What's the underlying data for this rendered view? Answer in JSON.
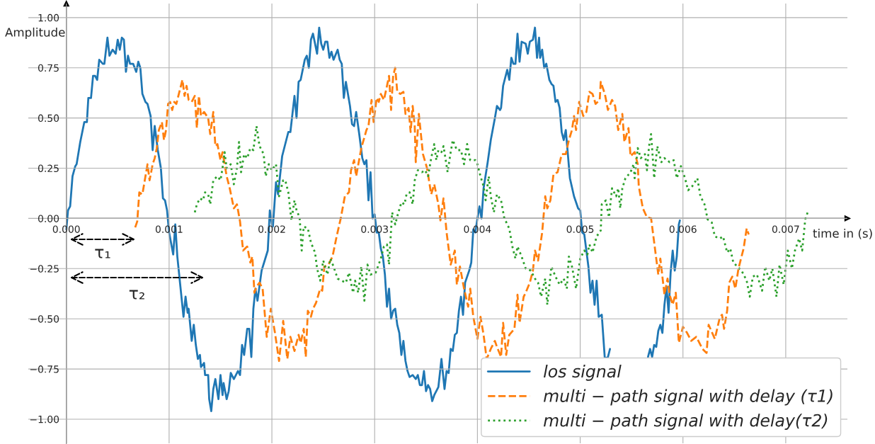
{
  "chart_data": {
    "type": "line",
    "xlabel": "time in (s)",
    "ylabel": "Amplitude",
    "xlim": [
      -0.00037,
      0.0076
    ],
    "ylim": [
      -1.12,
      1.07
    ],
    "xticks": [
      {
        "value": 0,
        "label": "0.000"
      },
      {
        "value": 0.001,
        "label": "0.001"
      },
      {
        "value": 0.002,
        "label": "0.002"
      },
      {
        "value": 0.003,
        "label": "0.003"
      },
      {
        "value": 0.004,
        "label": "0.004"
      },
      {
        "value": 0.005,
        "label": "0.005"
      },
      {
        "value": 0.006,
        "label": "0.006"
      },
      {
        "value": 0.007,
        "label": "0.007"
      }
    ],
    "yticks": [
      {
        "value": -1,
        "label": "−1.00"
      },
      {
        "value": -0.75,
        "label": "−0.75"
      },
      {
        "value": -0.5,
        "label": "−0.50"
      },
      {
        "value": -0.25,
        "label": "−0.25"
      },
      {
        "value": 0,
        "label": "0.00"
      },
      {
        "value": 0.25,
        "label": "0.25"
      },
      {
        "value": 0.5,
        "label": "0.50"
      },
      {
        "value": 0.75,
        "label": "0.75"
      },
      {
        "value": 1,
        "label": "1.00"
      }
    ],
    "grid": true,
    "legend": "lower right",
    "annotations": [
      "τ₁",
      "τ₂"
    ],
    "series": [
      {
        "name": "los signal",
        "color": "#1f77b4",
        "line_style": "solid",
        "x": [
          0,
          1.6e-05,
          3.7e-05,
          6e-05,
          8.7e-05,
          0.0001,
          0.000135,
          0.000175,
          0.0002,
          0.000214,
          0.00024,
          0.00026,
          0.00028,
          0.0003,
          0.00032,
          0.000355,
          0.00037,
          0.0004,
          0.00042,
          0.00045,
          0.00048,
          0.0005,
          0.00052,
          0.00054,
          0.00056,
          0.00058,
          0.0006,
          0.00062,
          0.00065,
          0.00068,
          0.0007,
          0.00072,
          0.00074,
          0.00077,
          0.00079,
          0.00082,
          0.00084,
          0.00086,
          0.00089,
          0.00092,
          0.00094,
          0.00096,
          0.00098,
          0.001,
          0.00104,
          0.00106,
          0.00108,
          0.00111,
          0.00114,
          0.00116,
          0.00118,
          0.00119,
          0.00122,
          0.00124,
          0.00126,
          0.00128,
          0.0013,
          0.00131,
          0.00134,
          0.00135,
          0.00138,
          0.00139,
          0.00141,
          0.00143,
          0.00145,
          0.00148,
          0.0015,
          0.00152,
          0.00153,
          0.00156,
          0.00158,
          0.0016,
          0.00163,
          0.00167,
          0.00169,
          0.00171,
          0.00173,
          0.00176,
          0.00178,
          0.0018,
          0.00182,
          0.00184,
          0.00186,
          0.0019,
          0.00196,
          0.00198,
          0.002,
          0.00201,
          0.00204,
          0.00206,
          0.0021,
          0.00216,
          0.00218,
          0.00222,
          0.00224,
          0.00226,
          0.00228,
          0.00232,
          0.00234,
          0.00236,
          0.00238,
          0.0024,
          0.00244,
          0.00246,
          0.00248,
          0.0025,
          0.00252,
          0.00254,
          0.00256,
          0.00258,
          0.0026,
          0.00264,
          0.00266,
          0.00268,
          0.0027,
          0.00272,
          0.00276,
          0.00278,
          0.0028,
          0.00282,
          0.00285,
          0.00288,
          0.0029,
          0.00292,
          0.00294,
          0.00296,
          0.00298,
          0.003,
          0.00302,
          0.00304,
          0.00306,
          0.00308,
          0.0031,
          0.00312,
          0.00314,
          0.00316,
          0.00318,
          0.0032,
          0.00322,
          0.00324,
          0.00326,
          0.00328,
          0.0033,
          0.00332,
          0.00334,
          0.00337,
          0.0034,
          0.00342,
          0.00344,
          0.00346,
          0.00348,
          0.0035,
          0.00352,
          0.00354,
          0.00356,
          0.00358,
          0.00362,
          0.00365,
          0.00368,
          0.0037,
          0.00372,
          0.00374,
          0.00376,
          0.00378,
          0.0038,
          0.00382,
          0.00384,
          0.00386,
          0.00388,
          0.00392,
          0.00394,
          0.00396,
          0.00398,
          0.004,
          0.00402,
          0.00404,
          0.00406,
          0.0041,
          0.00413,
          0.00417,
          0.00419,
          0.00422,
          0.00423,
          0.00425,
          0.00429,
          0.00431,
          0.00433,
          0.00435,
          0.00437,
          0.00439,
          0.00441,
          0.00443,
          0.00447,
          0.00449,
          0.00451,
          0.00454,
          0.00456,
          0.00458,
          0.0046,
          0.00461,
          0.00463,
          0.00465,
          0.00467,
          0.0047,
          0.00472,
          0.00474,
          0.00476,
          0.00478,
          0.0048,
          0.00482,
          0.00484,
          0.00486,
          0.00488,
          0.0049,
          0.00494,
          0.00498,
          0.005,
          0.00502,
          0.00504,
          0.00506,
          0.00508,
          0.0051,
          0.00512,
          0.00514,
          0.00516,
          0.00518,
          0.00521,
          0.00524,
          0.00527,
          0.00529,
          0.00532,
          0.00537,
          0.0054,
          0.00544,
          0.00549,
          0.00553,
          0.00556,
          0.0056,
          0.00563,
          0.00566,
          0.00568,
          0.0057,
          0.00572,
          0.00574,
          0.00576,
          0.00578,
          0.0058,
          0.00582,
          0.00584,
          0.00586,
          0.00588,
          0.0059,
          0.00592,
          0.00594,
          0.00596,
          0.00597
        ],
        "values": [
          -0.055,
          0.04,
          0.06,
          0.21,
          0.26,
          0.27,
          0.38,
          0.48,
          0.48,
          0.6,
          0.6,
          0.71,
          0.71,
          0.69,
          0.79,
          0.77,
          0.77,
          0.9,
          0.81,
          0.84,
          0.82,
          0.89,
          0.84,
          0.9,
          0.89,
          0.73,
          0.81,
          0.77,
          0.77,
          0.73,
          0.78,
          0.75,
          0.62,
          0.58,
          0.57,
          0.51,
          0.34,
          0.46,
          0.34,
          0.25,
          0.1,
          0.09,
          0.04,
          -0.07,
          -0.18,
          -0.03,
          -0.19,
          -0.34,
          -0.49,
          -0.39,
          -0.47,
          -0.45,
          -0.61,
          -0.53,
          -0.63,
          -0.7,
          -0.68,
          -0.74,
          -0.72,
          -0.78,
          -0.78,
          -0.9,
          -0.96,
          -0.85,
          -0.8,
          -0.9,
          -0.78,
          -0.88,
          -0.82,
          -0.9,
          -0.86,
          -0.77,
          -0.8,
          -0.76,
          -0.78,
          -0.63,
          -0.68,
          -0.55,
          -0.55,
          -0.69,
          -0.45,
          -0.35,
          -0.41,
          -0.26,
          -0.16,
          0.04,
          -0.03,
          -0.04,
          0.18,
          0.12,
          0.31,
          0.43,
          0.43,
          0.61,
          0.5,
          0.68,
          0.69,
          0.79,
          0.81,
          0.75,
          0.89,
          0.92,
          0.82,
          0.95,
          0.87,
          0.84,
          0.88,
          0.88,
          0.8,
          0.83,
          0.79,
          0.84,
          0.79,
          0.77,
          0.6,
          0.68,
          0.56,
          0.47,
          0.46,
          0.53,
          0.42,
          0.3,
          0.27,
          0.29,
          0.09,
          0.23,
          0.0,
          0.02,
          -0.07,
          -0.07,
          -0.15,
          -0.19,
          -0.28,
          -0.44,
          -0.35,
          -0.5,
          -0.46,
          -0.45,
          -0.53,
          -0.57,
          -0.68,
          -0.61,
          -0.71,
          -0.76,
          -0.79,
          -0.78,
          -0.8,
          -0.78,
          -0.83,
          -0.83,
          -0.76,
          -0.86,
          -0.83,
          -0.85,
          -0.91,
          -0.88,
          -0.84,
          -0.7,
          -0.85,
          -0.76,
          -0.77,
          -0.65,
          -0.66,
          -0.58,
          -0.57,
          -0.46,
          -0.39,
          -0.48,
          -0.32,
          -0.26,
          -0.22,
          -0.055,
          -0.07,
          0.0,
          0.06,
          0.0,
          0.15,
          0.28,
          0.39,
          0.5,
          0.56,
          0.54,
          0.55,
          0.66,
          0.74,
          0.69,
          0.8,
          0.77,
          0.77,
          0.92,
          0.78,
          0.88,
          0.87,
          0.82,
          0.88,
          0.89,
          0.95,
          0.8,
          0.9,
          0.8,
          0.84,
          0.75,
          0.77,
          0.69,
          0.67,
          0.66,
          0.58,
          0.59,
          0.55,
          0.43,
          0.39,
          0.44,
          0.32,
          0.2,
          0.11,
          0.05,
          0.04,
          -0.07,
          -0.08,
          -0.16,
          -0.24,
          -0.37,
          -0.31,
          -0.43,
          -0.31,
          -0.49,
          -0.48,
          -0.7,
          -0.69,
          -0.65,
          null,
          null,
          null,
          null,
          null,
          null,
          null,
          null,
          null,
          -0.69,
          -0.65,
          -0.69,
          -0.63,
          -0.64,
          -0.56,
          -0.53,
          -0.57,
          -0.43,
          -0.34,
          -0.47,
          -0.27,
          -0.16,
          -0.26,
          -0.19,
          -0.03,
          -0.01
        ]
      },
      {
        "name": "multi − path signal with delay (τ1)",
        "color": "#ff7f0e",
        "line_style": "dashed",
        "x": [
          0.00067,
          0.00069,
          0.00071,
          0.00074,
          0.00079,
          0.00081,
          0.00084,
          0.00086,
          0.00088,
          0.0009,
          0.00093,
          0.00095,
          0.00097,
          0.00099,
          0.00101,
          0.00103,
          0.00105,
          0.00107,
          0.00109,
          0.00113,
          0.00115,
          0.00117,
          0.00119,
          0.00122,
          0.00125,
          0.00127,
          0.00129,
          0.00131,
          0.00134,
          0.00138,
          0.0014,
          0.00143,
          0.00145,
          0.00147,
          0.0015,
          0.00152,
          0.00156,
          0.00159,
          0.00163,
          0.00166,
          0.00169,
          0.00172,
          0.00176,
          0.00179,
          0.00181,
          0.00183,
          0.00185,
          0.00188,
          0.00191,
          0.00195,
          0.00199,
          0.00203,
          0.00207,
          0.00211,
          0.00215,
          0.00218,
          0.00222,
          0.00226,
          0.00228,
          0.00231,
          0.00233,
          0.00235,
          0.00238,
          0.0024,
          0.00243,
          0.00247,
          0.00249,
          0.00251,
          0.00255,
          0.00259,
          0.00263,
          0.00267,
          0.00271,
          0.00275,
          0.00277,
          0.0028,
          0.00282,
          0.00287,
          0.00292,
          0.00294,
          0.00297,
          0.00299,
          0.00302,
          0.00304,
          0.00306,
          0.00309,
          0.00312,
          0.00314,
          0.00316,
          0.00318,
          0.0032,
          0.00322,
          0.00325,
          0.00328,
          0.0033,
          0.00333,
          0.00335,
          0.00337,
          0.00339,
          0.0034,
          0.00343,
          0.00347,
          0.00351,
          0.00355,
          0.00358,
          0.00362,
          0.00364,
          0.00367,
          0.0037,
          0.00374,
          0.00378,
          0.0038,
          0.00383,
          0.00387,
          0.00391,
          0.00393,
          0.00396,
          0.004,
          0.00403,
          0.00406,
          0.00409,
          0.00413,
          0.00417,
          0.00419,
          0.00423,
          0.00425,
          0.00428,
          0.00431,
          0.00436,
          0.00439,
          0.00441,
          0.00445,
          0.00447,
          0.00451,
          0.00454,
          0.00456,
          0.00459,
          0.00463,
          0.00466,
          0.00468,
          0.00471,
          0.00474,
          0.00478,
          0.00482,
          0.00486,
          0.00489,
          0.00492,
          0.00494,
          0.00496,
          0.00499,
          0.00503,
          0.00506,
          0.00509,
          0.00512,
          0.00515,
          0.00519,
          0.0052,
          0.00524,
          0.00527,
          0.00531,
          0.00534,
          0.00537,
          0.00541,
          0.00543,
          0.00547,
          0.00549,
          0.00553,
          0.00556,
          0.00557,
          0.00561,
          0.00565,
          0.00569,
          0.00572,
          0.00576,
          0.00578,
          0.00582,
          0.00585,
          0.00587,
          0.0059,
          0.00593,
          0.00596,
          0.006,
          0.00604,
          0.00608,
          0.00613,
          0.00619,
          0.00623,
          0.00625,
          0.00631,
          0.00636,
          0.00638,
          0.0064,
          0.00643,
          0.00645,
          0.00648,
          0.00651,
          0.00654,
          0.00659,
          0.00662,
          0.00664
        ],
        "values": [
          -0.045,
          -0.015,
          0.13,
          0.12,
          0.27,
          0.19,
          0.27,
          0.3,
          0.35,
          0.44,
          0.48,
          0.39,
          0.44,
          0.57,
          0.58,
          0.54,
          0.58,
          0.57,
          0.61,
          0.69,
          0.61,
          0.66,
          0.59,
          0.58,
          0.61,
          0.45,
          0.61,
          0.51,
          0.53,
          0.5,
          0.42,
          0.53,
          0.36,
          0.37,
          0.29,
          0.33,
          0.21,
          0.15,
          0.05,
          0.07,
          -0.015,
          -0.16,
          -0.14,
          -0.22,
          -0.19,
          -0.37,
          -0.34,
          -0.32,
          -0.35,
          -0.59,
          -0.45,
          -0.57,
          -0.71,
          -0.51,
          -0.7,
          -0.59,
          -0.66,
          -0.58,
          -0.62,
          -0.55,
          -0.69,
          -0.46,
          -0.49,
          -0.45,
          -0.42,
          -0.35,
          -0.36,
          -0.24,
          -0.23,
          -0.19,
          -0.09,
          0.0,
          0.11,
          0.13,
          0.24,
          0.29,
          0.21,
          0.35,
          0.44,
          0.46,
          0.59,
          0.48,
          0.6,
          0.58,
          0.62,
          0.59,
          0.66,
          0.71,
          0.54,
          0.71,
          0.75,
          0.63,
          0.62,
          0.63,
          0.52,
          0.55,
          0.43,
          0.56,
          0.46,
          0.28,
          0.52,
          0.32,
          0.25,
          0.12,
          0.17,
          0.07,
          -0.01,
          0.1,
          -0.07,
          -0.23,
          -0.16,
          -0.33,
          -0.24,
          -0.35,
          -0.44,
          -0.35,
          -0.49,
          -0.6,
          -0.49,
          -0.58,
          -0.7,
          -0.65,
          -0.61,
          -0.64,
          -0.69,
          -0.52,
          -0.68,
          -0.58,
          -0.55,
          -0.38,
          -0.52,
          -0.39,
          -0.37,
          -0.32,
          -0.26,
          -0.16,
          -0.21,
          -0.07,
          0.11,
          0.05,
          0.09,
          0.22,
          0.23,
          0.32,
          0.32,
          0.39,
          0.44,
          0.51,
          0.44,
          0.58,
          0.51,
          0.53,
          0.63,
          0.62,
          0.57,
          0.59,
          0.68,
          0.62,
          0.54,
          0.59,
          0.56,
          0.44,
          0.52,
          0.38,
          0.45,
          0.31,
          0.33,
          0.27,
          0.16,
          0.05,
          0.005,
          0.0,
          -0.12,
          -0.28,
          -0.2,
          -0.38,
          -0.3,
          -0.38,
          -0.43,
          -0.37,
          -0.62,
          -0.54,
          -0.57,
          -0.61,
          -0.59,
          -0.65,
          -0.67,
          -0.53,
          -0.6,
          -0.49,
          -0.48,
          -0.55,
          -0.46,
          -0.32,
          -0.29,
          -0.35,
          -0.25,
          -0.15,
          -0.05,
          -0.08
        ]
      },
      {
        "name": "multi − path signal with delay(τ2)",
        "color": "#2ca02c",
        "line_style": "dotted",
        "x": [
          0.00125,
          0.00127,
          0.0013,
          0.00133,
          0.00135,
          0.00138,
          0.0014,
          0.00143,
          0.00147,
          0.0015,
          0.00152,
          0.00154,
          0.00156,
          0.0016,
          0.00163,
          0.00166,
          0.00168,
          0.0017,
          0.00173,
          0.00176,
          0.00179,
          0.00182,
          0.00185,
          0.00188,
          0.00192,
          0.00194,
          0.00197,
          0.002,
          0.00204,
          0.00207,
          0.00211,
          0.00213,
          0.00216,
          0.00219,
          0.00222,
          0.00224,
          0.00227,
          0.00229,
          0.00231,
          0.00235,
          0.00238,
          0.00242,
          0.00244,
          0.00247,
          0.0025,
          0.00254,
          0.00257,
          0.0026,
          0.00264,
          0.00268,
          0.00272,
          0.00275,
          0.00279,
          0.00281,
          0.00284,
          0.00287,
          0.0029,
          0.00293,
          0.00296,
          0.00301,
          0.00306,
          0.00309,
          0.00312,
          0.00314,
          0.00317,
          0.0032,
          0.00322,
          0.00326,
          0.00329,
          0.00331,
          0.00334,
          0.00337,
          0.00339,
          0.00342,
          0.00346,
          0.00349,
          0.00352,
          0.00355,
          0.00358,
          0.0036,
          0.00362,
          0.00365,
          0.00367,
          0.00371,
          0.00374,
          0.00376,
          0.0038,
          0.00384,
          0.00387,
          0.0039,
          0.00393,
          0.00398,
          0.004,
          0.00403,
          0.00406,
          0.00408,
          0.00411,
          0.00413,
          0.00416,
          0.00419,
          0.00423,
          0.00426,
          0.00429,
          0.00431,
          0.00434,
          0.00437,
          0.00439,
          0.00443,
          0.00447,
          0.00452,
          0.00456,
          0.00459,
          0.00462,
          0.00466,
          0.00468,
          0.00472,
          0.00476,
          0.0048,
          0.00484,
          0.00487,
          0.00489,
          0.00492,
          0.00496,
          0.005,
          0.00504,
          0.00507,
          0.00509,
          0.00512,
          0.00516,
          0.0052,
          0.00521,
          0.00525,
          0.00528,
          0.00531,
          0.00535,
          0.00537,
          0.00539,
          0.00541,
          0.00544,
          0.00549,
          0.00552,
          0.00553,
          0.00556,
          0.00559,
          0.00563,
          0.00565,
          0.00567,
          0.00569,
          0.00572,
          0.00575,
          0.00579,
          0.00582,
          0.00587,
          0.00591,
          0.00594,
          0.00598,
          0.00602,
          0.00605,
          0.00609,
          0.00614,
          0.00617,
          0.00621,
          0.00624,
          0.00628,
          0.00631,
          0.00636,
          0.00639,
          0.00643,
          0.00646,
          0.00649,
          0.00653,
          0.00657,
          0.00662,
          0.00665,
          0.00668,
          0.00672,
          0.00677,
          0.0068,
          0.00684,
          0.00687,
          0.00691,
          0.00694,
          0.00698,
          0.00702,
          0.00706,
          0.00709,
          0.00713,
          0.00716,
          0.00719,
          0.00722
        ],
        "values": [
          0.03,
          0.07,
          0.1,
          0.09,
          0.13,
          0.12,
          0.07,
          0.19,
          0.21,
          0.19,
          0.25,
          0.33,
          0.25,
          0.27,
          0.17,
          0.25,
          0.38,
          0.23,
          0.32,
          0.3,
          0.35,
          0.34,
          0.46,
          0.36,
          0.32,
          0.21,
          0.27,
          0.24,
          0.27,
          0.11,
          0.19,
          0.19,
          0.13,
          -0.01,
          0.09,
          0.04,
          0.005,
          -0.16,
          -0.04,
          -0.05,
          -0.12,
          -0.17,
          -0.25,
          -0.31,
          -0.21,
          -0.28,
          -0.2,
          -0.24,
          -0.3,
          -0.31,
          -0.32,
          -0.27,
          -0.37,
          -0.31,
          -0.37,
          -0.24,
          -0.41,
          -0.23,
          -0.28,
          -0.27,
          -0.2,
          -0.14,
          -0.13,
          -0.23,
          0.03,
          -0.03,
          0.01,
          0.08,
          0.07,
          0.12,
          0.13,
          0.07,
          0.19,
          0.24,
          0.23,
          0.24,
          0.21,
          0.3,
          0.37,
          0.29,
          0.34,
          0.33,
          0.36,
          0.23,
          0.33,
          0.39,
          0.34,
          0.34,
          0.27,
          0.37,
          0.29,
          0.29,
          0.27,
          0.21,
          0.16,
          0.09,
          0.21,
          0.11,
          0.03,
          0.12,
          0.09,
          0.005,
          -0.03,
          -0.05,
          -0.14,
          -0.2,
          -0.14,
          -0.19,
          -0.25,
          -0.26,
          -0.3,
          -0.32,
          -0.39,
          -0.3,
          -0.43,
          -0.24,
          -0.29,
          -0.33,
          -0.3,
          -0.35,
          -0.19,
          -0.24,
          -0.35,
          -0.2,
          -0.16,
          -0.18,
          -0.13,
          -0.17,
          -0.09,
          -0.06,
          0.07,
          0.09,
          0.005,
          0.15,
          0.11,
          0.15,
          0.05,
          0.15,
          0.2,
          0.23,
          0.27,
          0.2,
          0.35,
          0.3,
          0.32,
          0.24,
          0.36,
          0.42,
          0.2,
          0.36,
          0.28,
          0.3,
          0.28,
          0.29,
          0.2,
          0.26,
          0.2,
          0.14,
          0.16,
          0.2,
          0.11,
          0.07,
          -0.005,
          -0.02,
          -0.09,
          -0.1,
          -0.09,
          -0.17,
          -0.15,
          -0.22,
          -0.24,
          -0.26,
          -0.31,
          -0.39,
          -0.29,
          -0.28,
          -0.36,
          -0.24,
          -0.31,
          -0.25,
          -0.39,
          -0.23,
          -0.33,
          -0.16,
          -0.25,
          -0.16,
          -0.1,
          -0.16,
          -0.005,
          0.04
        ]
      }
    ]
  }
}
